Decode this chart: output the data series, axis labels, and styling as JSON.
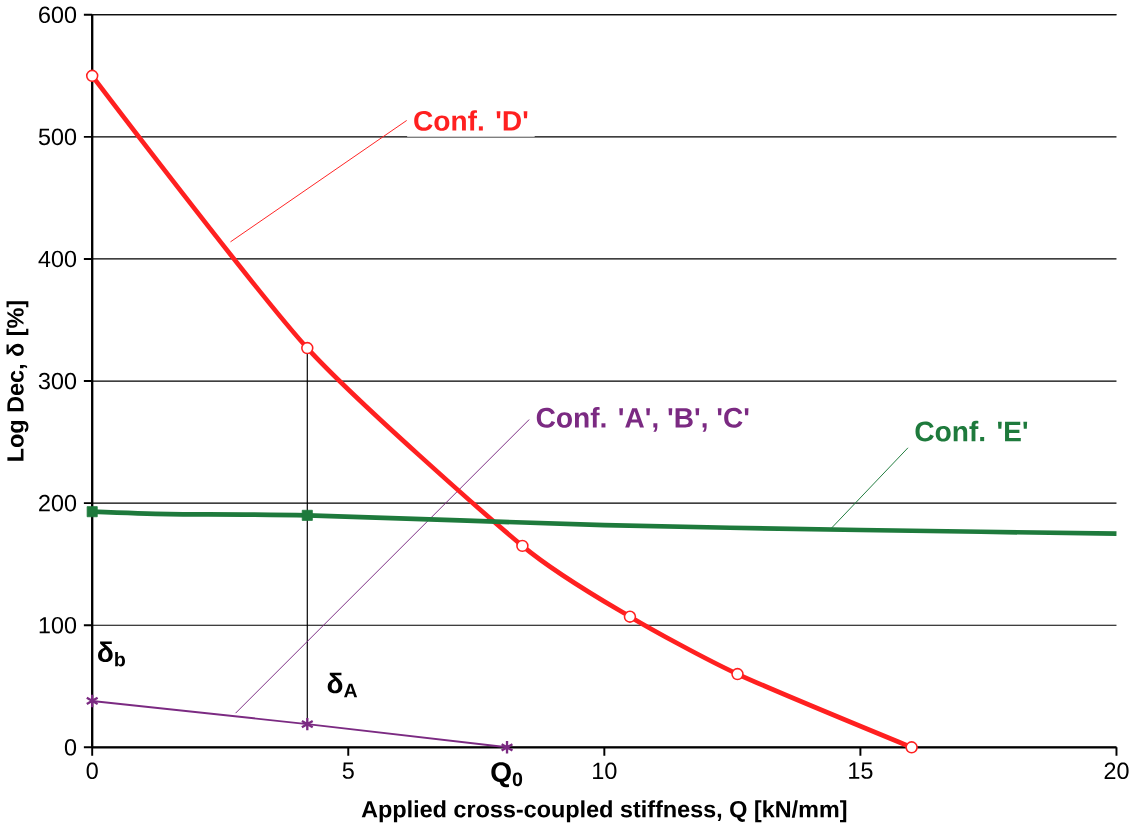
{
  "chart_data": {
    "type": "line",
    "xlabel": "Applied cross-coupled stiffness, Q [kN/mm]",
    "ylabel": "Log Dec, δ [%]",
    "xlim": [
      0,
      20
    ],
    "xticks": [
      0,
      5,
      10,
      15,
      20
    ],
    "ylim": [
      0,
      600
    ],
    "yticks": [
      0,
      100,
      200,
      300,
      400,
      500,
      600
    ],
    "grid": "y",
    "series": [
      {
        "color": "#ff2020",
        "marker": "circle",
        "x": [
          0,
          4.2,
          8.4,
          10.5,
          12.6,
          16
        ],
        "values": [
          550,
          327,
          165,
          107,
          60,
          0
        ]
      },
      {
        "color": "#1e7a3c",
        "marker": "none",
        "x": [
          0,
          1.5,
          4.2,
          10,
          15,
          20
        ],
        "values": [
          193,
          191,
          190,
          182,
          178,
          175
        ]
      },
      {
        "type": "scatter",
        "color": "#1e7a3c",
        "marker": "square",
        "x": [
          0,
          4.2
        ],
        "values": [
          193,
          190
        ]
      },
      {
        "color": "#7b2a82",
        "marker": "cross",
        "x": [
          0,
          4.2,
          8.1
        ],
        "values": [
          38,
          19,
          0
        ]
      }
    ],
    "ref_lines": [
      {
        "axis": "x",
        "value": 4.2,
        "color": "#000000"
      }
    ],
    "annotations": [
      {
        "text": "Conf. 'D'",
        "x": 2.7,
        "y": 414
      },
      {
        "text": "Conf. 'A', 'B', 'C'",
        "x": 2.8,
        "y": 28
      },
      {
        "text": "Conf. 'E'",
        "x": 14.4,
        "y": 178
      },
      {
        "text": "δ$_{b}$",
        "x": 0,
        "y": 38
      },
      {
        "text": "δ$_{A}$",
        "x": 4.2,
        "y": 19
      },
      {
        "text": "Q$_{0}$",
        "x": 8.1,
        "y": 0
      }
    ]
  }
}
